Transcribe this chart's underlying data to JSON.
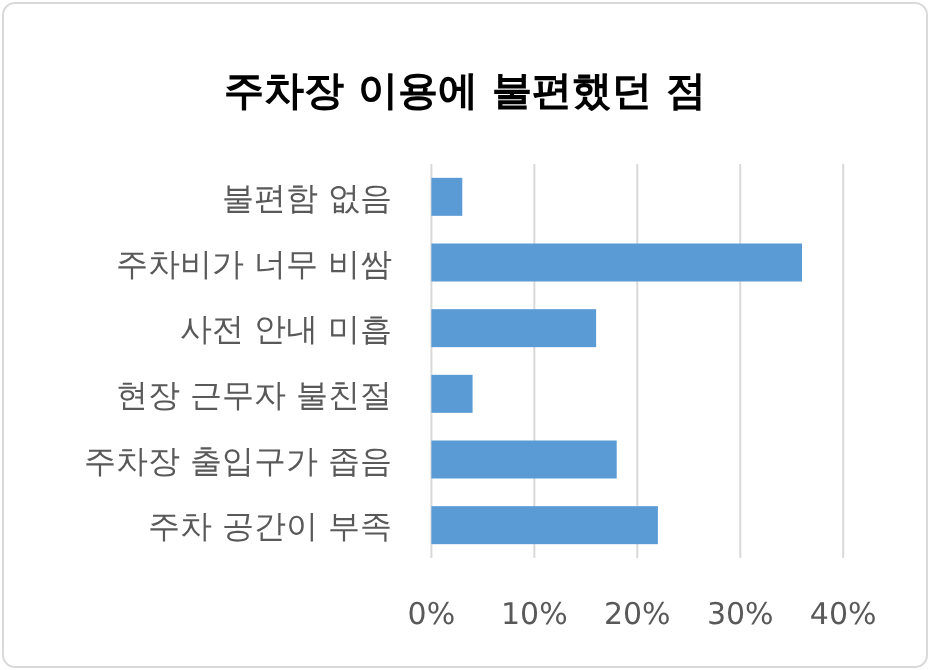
{
  "chart_data": {
    "type": "bar",
    "orientation": "horizontal",
    "title": "주차장 이용에 불편했던 점",
    "categories": [
      "불편함 없음",
      "주차비가 너무 비쌈",
      "사전 안내 미흡",
      "현장 근무자 불친절",
      "주차장 출입구가 좁음",
      "주차 공간이 부족"
    ],
    "values": [
      3,
      36,
      16,
      4,
      18,
      22
    ],
    "color": "#5b9bd5",
    "xlim": [
      0,
      40
    ],
    "xticks": [
      {
        "value": 0,
        "label": "0%"
      },
      {
        "value": 10,
        "label": "10%"
      },
      {
        "value": 20,
        "label": "20%"
      },
      {
        "value": 30,
        "label": "30%"
      },
      {
        "value": 40,
        "label": "40%"
      }
    ],
    "grid": "x"
  }
}
